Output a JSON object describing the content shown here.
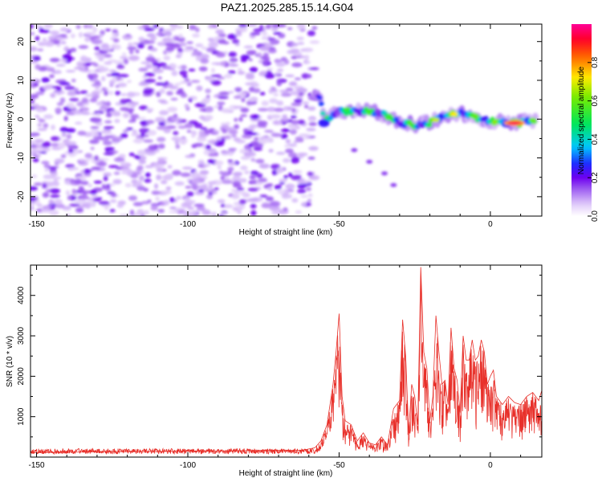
{
  "title": "PAZ1.2025.285.15.14.G04",
  "chart_data": [
    {
      "type": "heatmap",
      "title": "PAZ1.2025.285.15.14.G04",
      "xlabel": "Height of straight line (km)",
      "ylabel": "Frequency (Hz)",
      "xlim": [
        -152,
        17
      ],
      "ylim": [
        -25,
        24.5
      ],
      "xticks": [
        -150,
        -100,
        -50,
        0
      ],
      "xtick_labels": [
        "-150",
        "-100",
        "-50",
        "0"
      ],
      "yticks": [
        -20,
        -10,
        0,
        10,
        20
      ],
      "ytick_labels": [
        "-20",
        "-10",
        "0",
        "10",
        "20"
      ],
      "colorbar": {
        "label": "Normalized spectral amplitude",
        "range": [
          0.0,
          1.0
        ],
        "ticks": [
          0.0,
          0.2,
          0.4,
          0.6,
          0.8
        ],
        "tick_labels": [
          "0.0",
          "0.2",
          "0.4",
          "0.6",
          "0.8"
        ]
      },
      "features": [
        {
          "name": "noise region",
          "x_range": [
            -152,
            -58
          ],
          "y_range": [
            -25,
            24.5
          ],
          "amplitude_range": [
            0.0,
            0.2
          ]
        },
        {
          "name": "signal band",
          "points": [
            [
              -58,
              6
            ],
            [
              -56,
              5
            ],
            [
              -55,
              -1
            ],
            [
              -52,
              1
            ],
            [
              -50,
              2
            ],
            [
              -45,
              2
            ],
            [
              -40,
              2
            ],
            [
              -35,
              1
            ],
            [
              -30,
              -1
            ],
            [
              -25,
              -1.5
            ],
            [
              -20,
              -1
            ],
            [
              -15,
              1
            ],
            [
              -10,
              1.5
            ],
            [
              -5,
              0.5
            ],
            [
              0,
              -0.5
            ],
            [
              5,
              -1
            ],
            [
              10,
              -1
            ],
            [
              15,
              0
            ]
          ],
          "peak_amplitude": 0.95,
          "peak_x": 8
        },
        {
          "name": "secondary track",
          "points": [
            [
              -45,
              -8
            ],
            [
              -40,
              -11
            ],
            [
              -35,
              -14
            ],
            [
              -32,
              -17
            ]
          ],
          "amplitude": 0.12
        }
      ]
    },
    {
      "type": "line",
      "title": "",
      "xlabel": "Height of straight line (km)",
      "ylabel": "SNR (10 * v/v)",
      "xlim": [
        -152,
        17
      ],
      "ylim": [
        0,
        4750
      ],
      "xticks": [
        -150,
        -100,
        -50,
        0
      ],
      "xtick_labels": [
        "-150",
        "-100",
        "-50",
        "0"
      ],
      "yticks": [
        1000,
        2000,
        3000,
        4000
      ],
      "ytick_labels": [
        "1000",
        "2000",
        "3000",
        "4000"
      ],
      "color": "#e8302a",
      "series": [
        {
          "name": "SNR",
          "x": [
            -152,
            -140,
            -130,
            -120,
            -110,
            -100,
            -90,
            -80,
            -70,
            -62,
            -58,
            -56,
            -54,
            -52,
            -51,
            -50,
            -49,
            -48,
            -46,
            -44,
            -42,
            -40,
            -38,
            -36,
            -34,
            -32,
            -30,
            -29,
            -28,
            -27,
            -26,
            -25,
            -24,
            -23,
            -22,
            -21,
            -20,
            -19,
            -18,
            -17,
            -16,
            -15,
            -14,
            -13,
            -12,
            -11,
            -10,
            -9,
            -8,
            -7,
            -6,
            -5,
            -4,
            -3,
            -2,
            -1,
            0,
            1,
            2,
            4,
            6,
            8,
            10,
            12,
            14,
            16,
            17
          ],
          "y": [
            110,
            120,
            130,
            130,
            140,
            150,
            150,
            160,
            170,
            170,
            230,
            400,
            800,
            1800,
            2600,
            3550,
            1500,
            900,
            800,
            400,
            600,
            350,
            300,
            500,
            300,
            1200,
            1400,
            3400,
            2500,
            600,
            1800,
            1500,
            800,
            4700,
            2600,
            2200,
            900,
            1500,
            3500,
            2600,
            1800,
            1900,
            1300,
            3200,
            2200,
            1900,
            1100,
            3000,
            2400,
            2400,
            2900,
            2400,
            2500,
            2900,
            2600,
            1800,
            2000,
            2150,
            1500,
            1300,
            1500,
            1350,
            1300,
            1500,
            1600,
            1400,
            1650
          ]
        }
      ]
    }
  ]
}
